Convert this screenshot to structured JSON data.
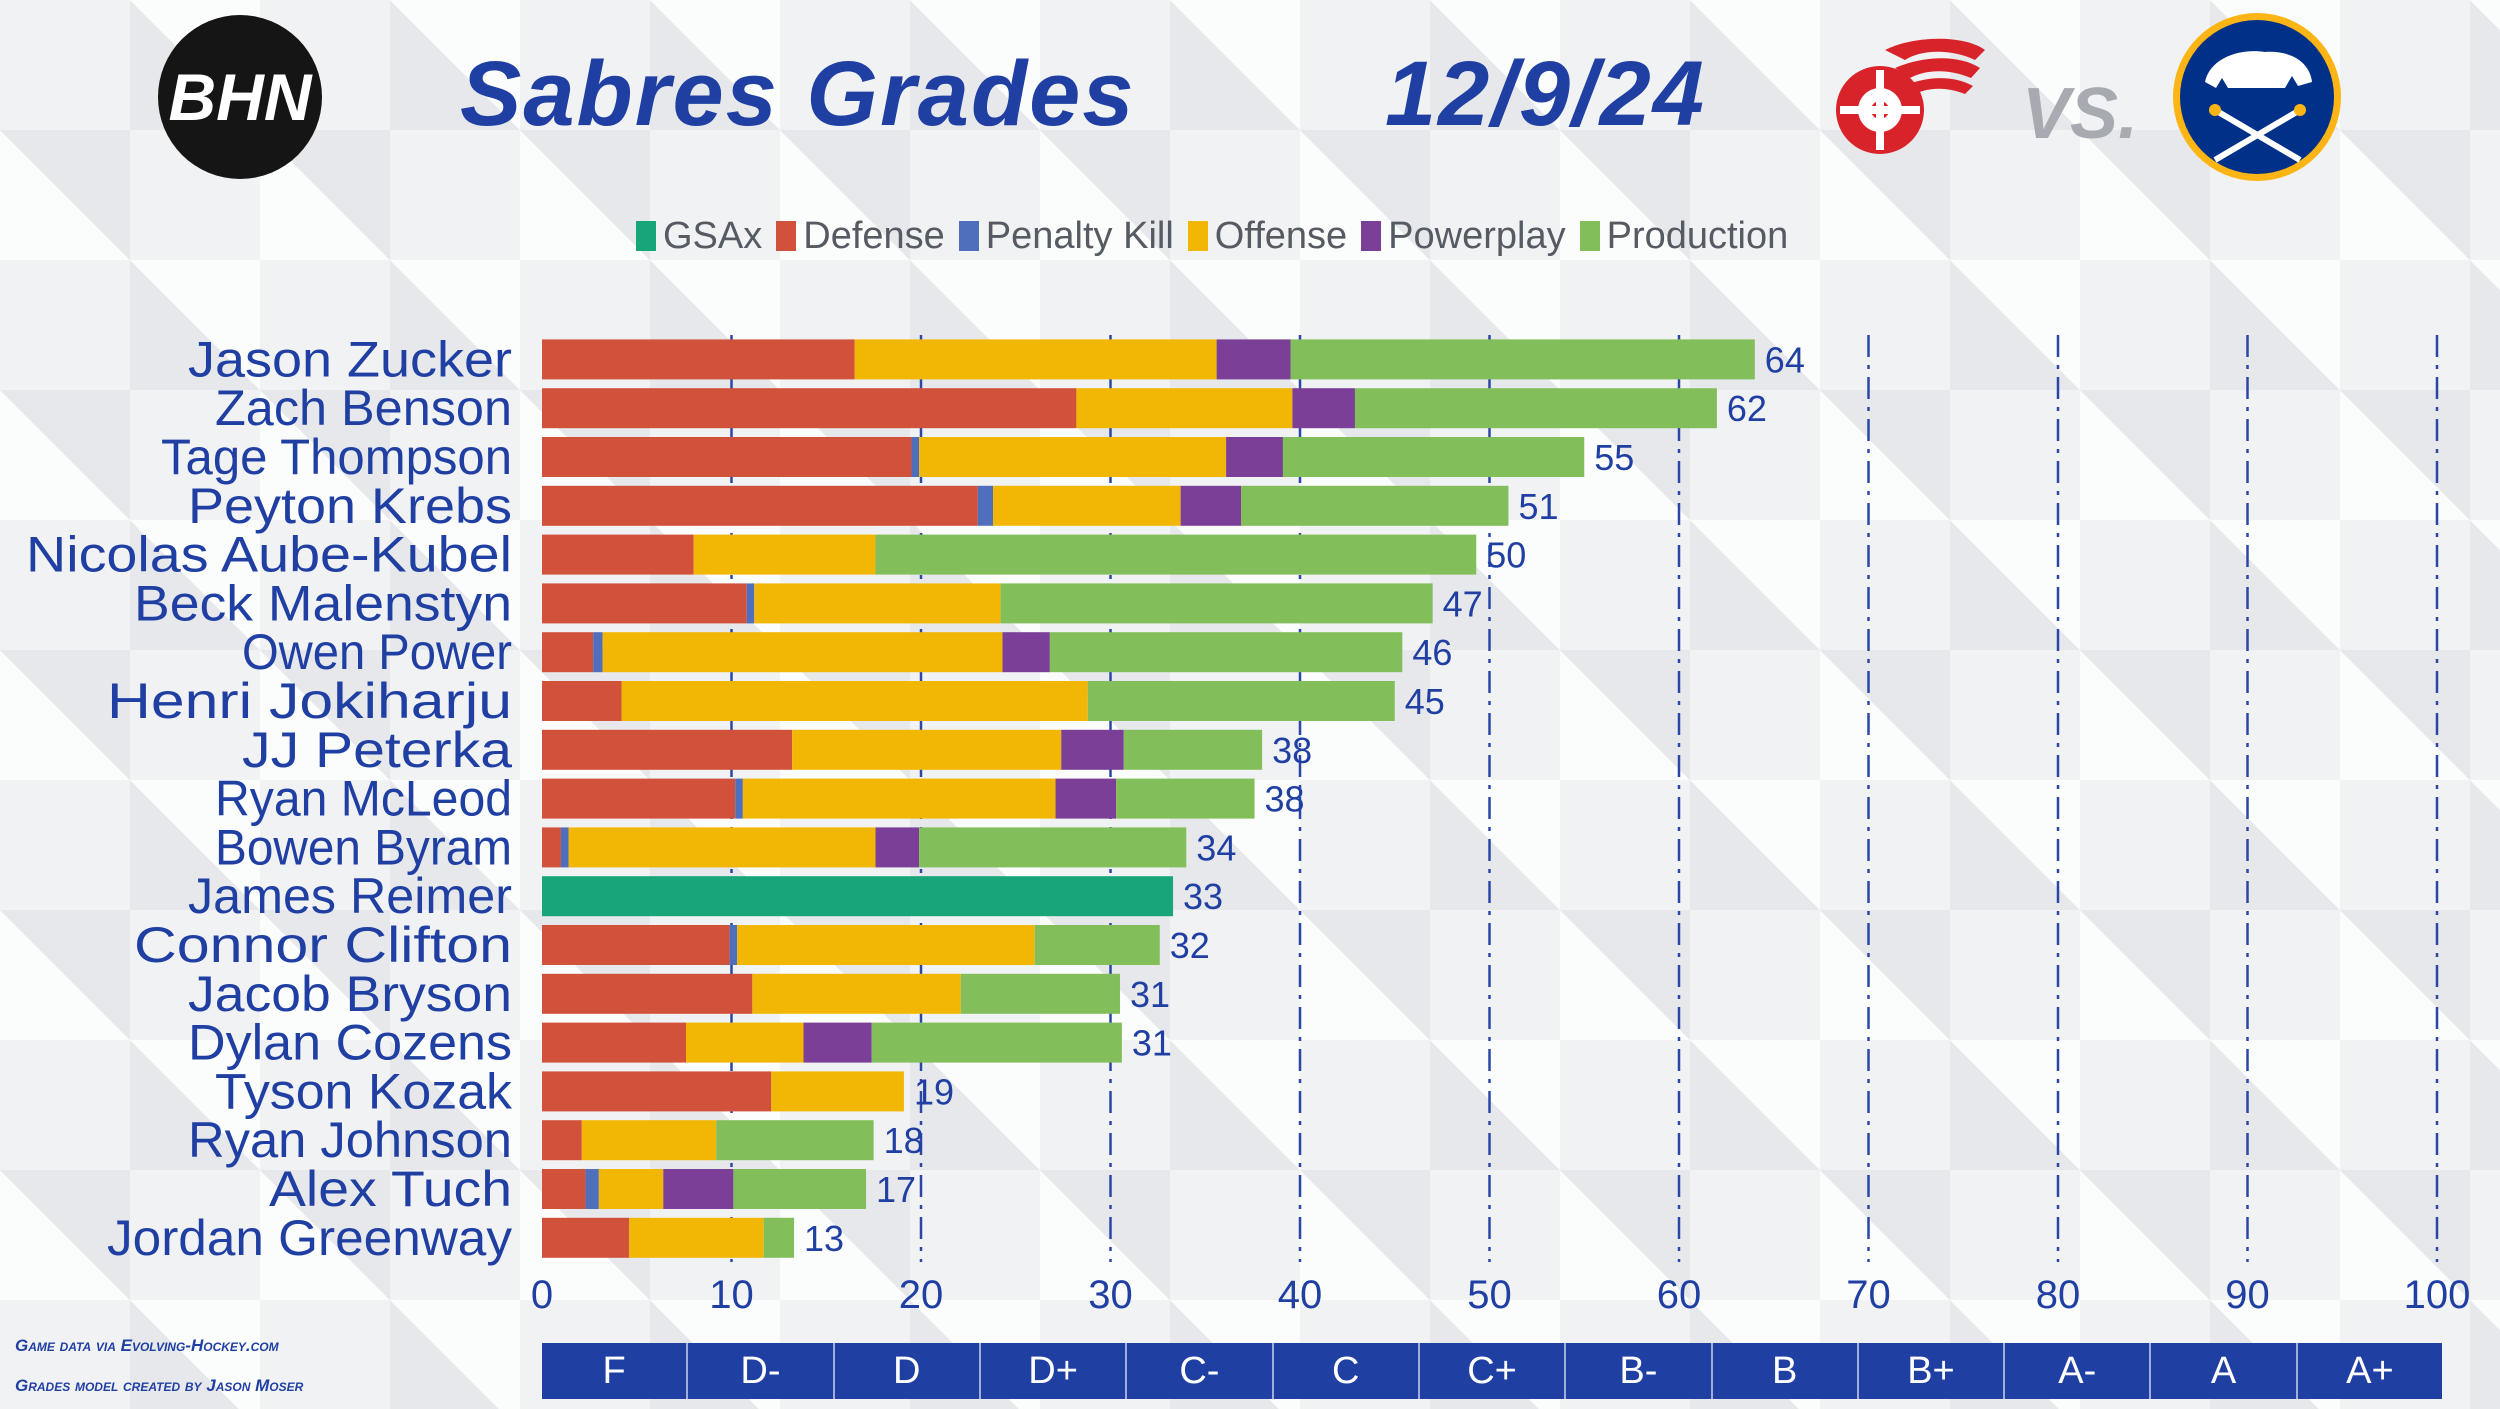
{
  "header": {
    "logo_text": "BHN",
    "title": "Sabres Grades",
    "date": "12/9/24",
    "versus": "VS."
  },
  "logos": {
    "opponent": "detroit-red-wings-winged-wheel-logo",
    "team": "buffalo-sabres-logo"
  },
  "legend": [
    {
      "name": "GSAx",
      "color": "#18a57a"
    },
    {
      "name": "Defense",
      "color": "#d2513b"
    },
    {
      "name": "Penalty Kill",
      "color": "#4f6fbd"
    },
    {
      "name": "Offense",
      "color": "#f2b705"
    },
    {
      "name": "Powerplay",
      "color": "#7b3f98"
    },
    {
      "name": "Production",
      "color": "#82bf5b"
    }
  ],
  "chart_data": {
    "type": "bar",
    "orientation": "horizontal",
    "stacked": true,
    "xlim": [
      0,
      100
    ],
    "xticks": [
      0,
      10,
      20,
      30,
      40,
      50,
      60,
      70,
      80,
      90,
      100
    ],
    "grid": "vertical dash-dot",
    "legend_position": "top",
    "categories": [
      "Jason Zucker",
      "Zach Benson",
      "Tage Thompson",
      "Peyton Krebs",
      "Nicolas Aube-Kubel",
      "Beck Malenstyn",
      "Owen Power",
      "Henri Jokiharju",
      "JJ Peterka",
      "Ryan McLeod",
      "Bowen Byram",
      "James Reimer",
      "Connor Clifton",
      "Jacob Bryson",
      "Dylan Cozens",
      "Tyson Kozak",
      "Ryan Johnson",
      "Alex Tuch",
      "Jordan Greenway"
    ],
    "totals": [
      64,
      62,
      55,
      51,
      50,
      47,
      46,
      45,
      38,
      38,
      34,
      33,
      32,
      31,
      31,
      19,
      18,
      17,
      13
    ],
    "series": [
      {
        "name": "GSAx",
        "values": [
          0,
          0,
          0,
          0,
          0,
          0,
          0,
          0,
          0,
          0,
          0,
          33.3,
          0,
          0,
          0,
          0,
          0,
          0,
          0
        ]
      },
      {
        "name": "Defense",
        "values": [
          16.5,
          28.2,
          19.5,
          23.0,
          8.0,
          10.8,
          2.7,
          4.2,
          13.2,
          10.2,
          1.0,
          0,
          9.9,
          11.1,
          7.6,
          12.1,
          2.1,
          2.3,
          4.6
        ]
      },
      {
        "name": "Penalty Kill",
        "values": [
          0,
          0,
          0.4,
          0.8,
          0,
          0.4,
          0.5,
          0,
          0,
          0.4,
          0.4,
          0,
          0.4,
          0,
          0,
          0,
          0,
          0.7,
          0
        ]
      },
      {
        "name": "Offense",
        "values": [
          19.1,
          11.4,
          16.2,
          9.9,
          9.6,
          13.0,
          21.1,
          24.6,
          14.2,
          16.5,
          16.2,
          0,
          15.7,
          11.0,
          6.2,
          7.0,
          7.1,
          3.4,
          7.1
        ]
      },
      {
        "name": "Powerplay",
        "values": [
          3.9,
          3.3,
          3.0,
          3.2,
          0,
          0,
          2.5,
          0,
          3.3,
          3.2,
          2.3,
          0,
          0,
          0,
          3.6,
          0,
          0,
          3.7,
          0
        ]
      },
      {
        "name": "Production",
        "values": [
          24.5,
          19.1,
          15.9,
          14.1,
          31.7,
          22.8,
          18.6,
          16.2,
          7.3,
          7.3,
          14.1,
          0,
          6.6,
          8.4,
          13.2,
          0,
          8.3,
          7.0,
          1.6
        ]
      }
    ]
  },
  "grade_scale": [
    "F",
    "D-",
    "D",
    "D+",
    "C-",
    "C",
    "C+",
    "B-",
    "B",
    "B+",
    "A-",
    "A",
    "A+"
  ],
  "credits": {
    "line1": "Game data via Evolving-Hockey.com",
    "line2": "Grades model created by Jason Moser"
  }
}
